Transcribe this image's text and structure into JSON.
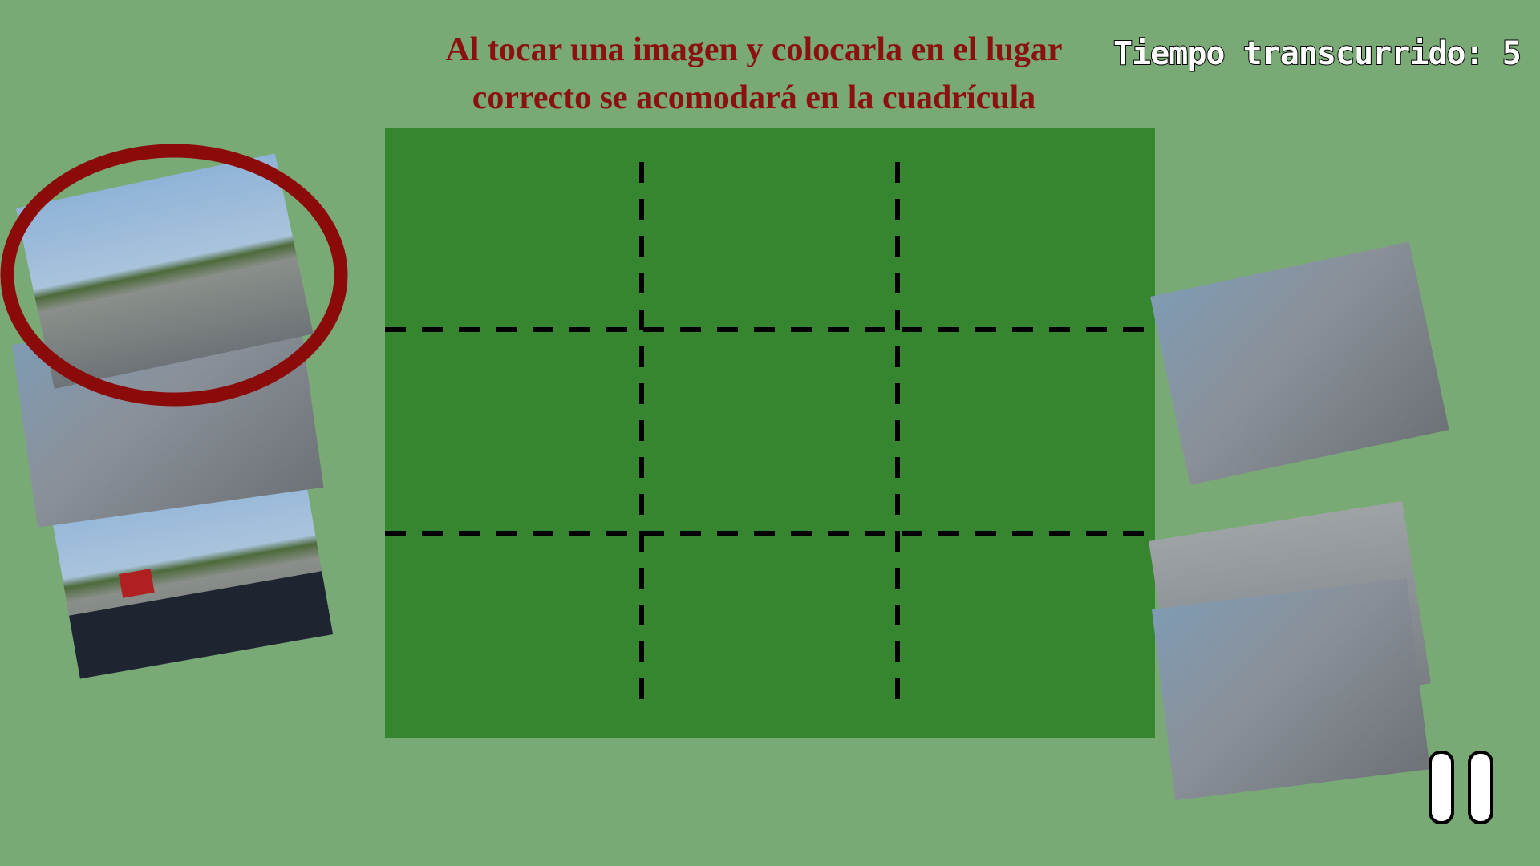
{
  "instruction": {
    "lines": [
      "Al tocar una imagen y colocarla en el lugar",
      "correcto se acomodará en la cuadrícula"
    ]
  },
  "timer": {
    "label": "Tiempo transcurrido:",
    "value": 5
  }
}
